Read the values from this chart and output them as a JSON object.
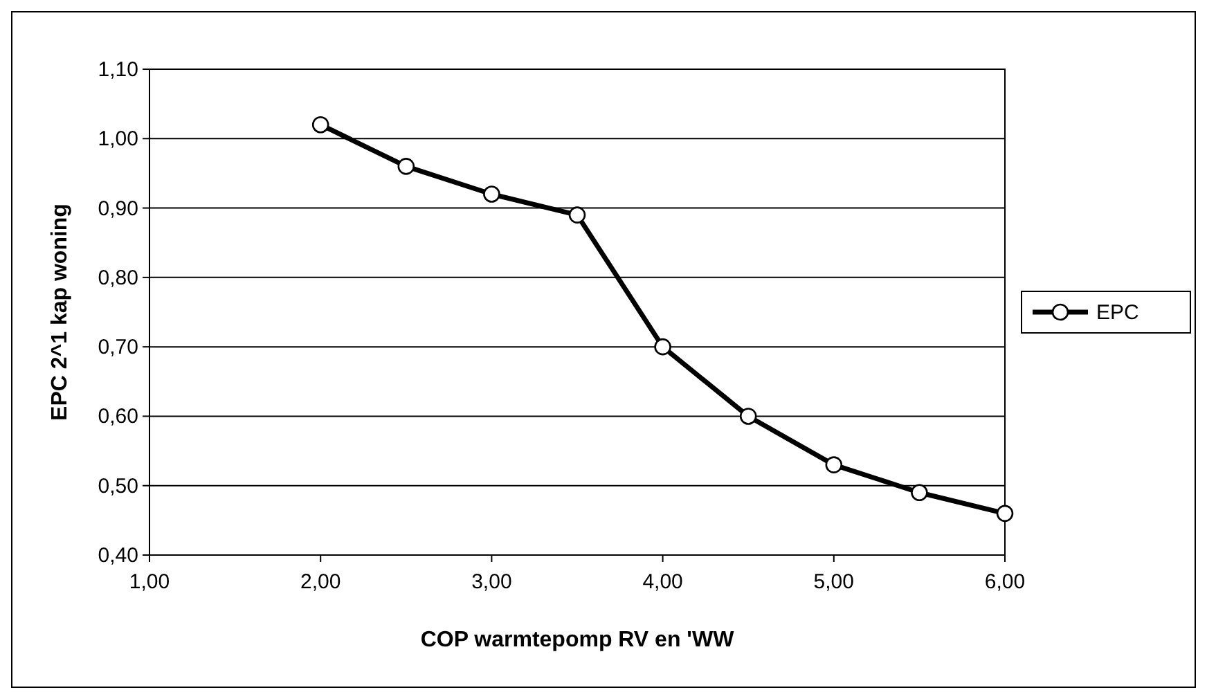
{
  "chart_data": {
    "type": "line",
    "xlabel": "COP warmtepomp RV en 'WW",
    "ylabel": "EPC 2^1 kap woning",
    "x": [
      2,
      2.5,
      3,
      3.5,
      4,
      4.5,
      5,
      5.5,
      6
    ],
    "series": [
      {
        "name": "EPC",
        "color": "#000000",
        "values": [
          1.02,
          0.96,
          0.92,
          0.89,
          0.7,
          0.6,
          0.53,
          0.49,
          0.46
        ]
      }
    ],
    "xlim": [
      1,
      6
    ],
    "xticks": [
      {
        "value": 1,
        "label": "1,00"
      },
      {
        "value": 2,
        "label": "2,00"
      },
      {
        "value": 3,
        "label": "3,00"
      },
      {
        "value": 4,
        "label": "4,00"
      },
      {
        "value": 5,
        "label": "5,00"
      },
      {
        "value": 6,
        "label": "6,00"
      }
    ],
    "ylim": [
      0.4,
      1.1
    ],
    "yticks": [
      {
        "value": 0.4,
        "label": "0,40"
      },
      {
        "value": 0.5,
        "label": "0,50"
      },
      {
        "value": 0.6,
        "label": "0,60"
      },
      {
        "value": 0.7,
        "label": "0,70"
      },
      {
        "value": 0.8,
        "label": "0,80"
      },
      {
        "value": 0.9,
        "label": "0,90"
      },
      {
        "value": 1.0,
        "label": "1,00"
      },
      {
        "value": 1.1,
        "label": "1,10"
      }
    ],
    "grid": "y",
    "legend": "right",
    "marker": "circle",
    "line_style": "solid"
  }
}
